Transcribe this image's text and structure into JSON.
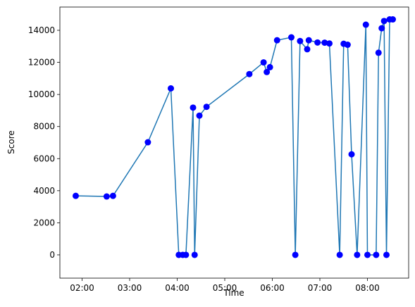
{
  "chart_data": {
    "type": "line",
    "xlabel": "Time",
    "ylabel": "Score",
    "x": [
      112,
      151,
      159,
      203,
      232,
      242,
      247,
      251,
      260,
      262,
      268,
      277,
      331,
      349,
      353,
      357,
      366,
      384,
      389,
      395,
      404,
      406,
      417,
      426,
      432,
      445,
      450,
      455,
      460,
      467,
      478,
      480,
      491,
      494,
      498,
      501,
      504,
      508,
      512
    ],
    "series": [
      {
        "color": "#1f77b4",
        "marker_color": "#0000ff",
        "values": [
          3680,
          3640,
          3680,
          7020,
          10380,
          0,
          0,
          0,
          9180,
          0,
          8680,
          9230,
          11270,
          12000,
          11400,
          11700,
          13380,
          13560,
          0,
          13330,
          12820,
          13380,
          13240,
          13230,
          13180,
          0,
          13160,
          13100,
          6270,
          0,
          14350,
          0,
          0,
          12600,
          14130,
          14580,
          0,
          14680,
          14680
        ]
      }
    ],
    "xlim": [
      92,
      532
    ],
    "xticks": [
      {
        "value": 120,
        "label": "02:00"
      },
      {
        "value": 180,
        "label": "03:00"
      },
      {
        "value": 240,
        "label": "04:00"
      },
      {
        "value": 300,
        "label": "05:00"
      },
      {
        "value": 360,
        "label": "06:00"
      },
      {
        "value": 420,
        "label": "07:00"
      },
      {
        "value": 480,
        "label": "08:00"
      }
    ],
    "ylim": [
      -1450,
      15450
    ],
    "yticks": [
      0,
      2000,
      4000,
      6000,
      8000,
      10000,
      12000,
      14000
    ]
  }
}
